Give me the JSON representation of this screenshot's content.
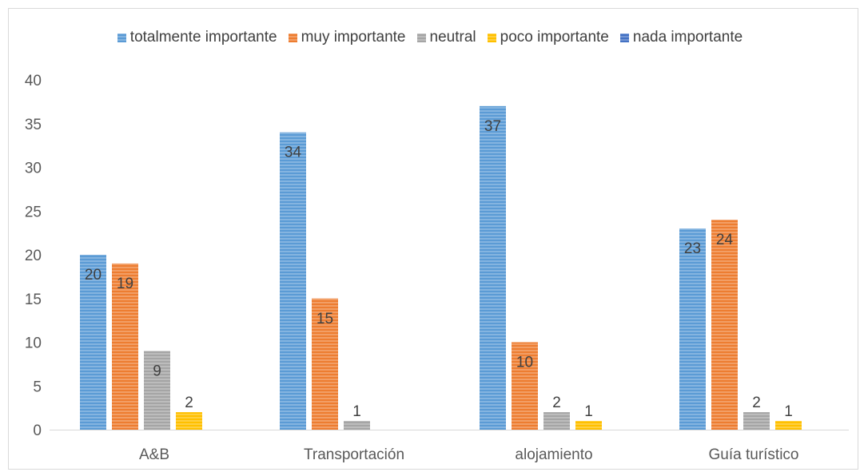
{
  "chart_data": {
    "type": "bar",
    "categories": [
      "A&B",
      "Transportación",
      "alojamiento",
      "Guía turístico"
    ],
    "series": [
      {
        "name": "totalmente importante",
        "color": "#5b9bd5",
        "values": [
          20,
          34,
          37,
          23
        ]
      },
      {
        "name": "muy importante",
        "color": "#ed7d31",
        "values": [
          19,
          15,
          10,
          24
        ]
      },
      {
        "name": "neutral",
        "color": "#a5a5a5",
        "values": [
          9,
          1,
          2,
          2
        ]
      },
      {
        "name": "poco importante",
        "color": "#ffc000",
        "values": [
          2,
          null,
          1,
          1
        ]
      },
      {
        "name": "nada importante",
        "color": "#4472c4",
        "values": [
          null,
          null,
          null,
          null
        ]
      }
    ],
    "data_labels": [
      [
        "20",
        "34",
        "37",
        "23"
      ],
      [
        "19",
        "15",
        "10",
        "24"
      ],
      [
        "9",
        "1",
        "2",
        "2"
      ],
      [
        "2",
        "",
        "1",
        "1"
      ],
      [
        "",
        "",
        "",
        ""
      ]
    ],
    "y_ticks": [
      "0",
      "5",
      "10",
      "15",
      "20",
      "25",
      "30",
      "35",
      "40"
    ],
    "ylim": [
      0,
      40
    ],
    "legend_position": "top",
    "grid": false
  }
}
